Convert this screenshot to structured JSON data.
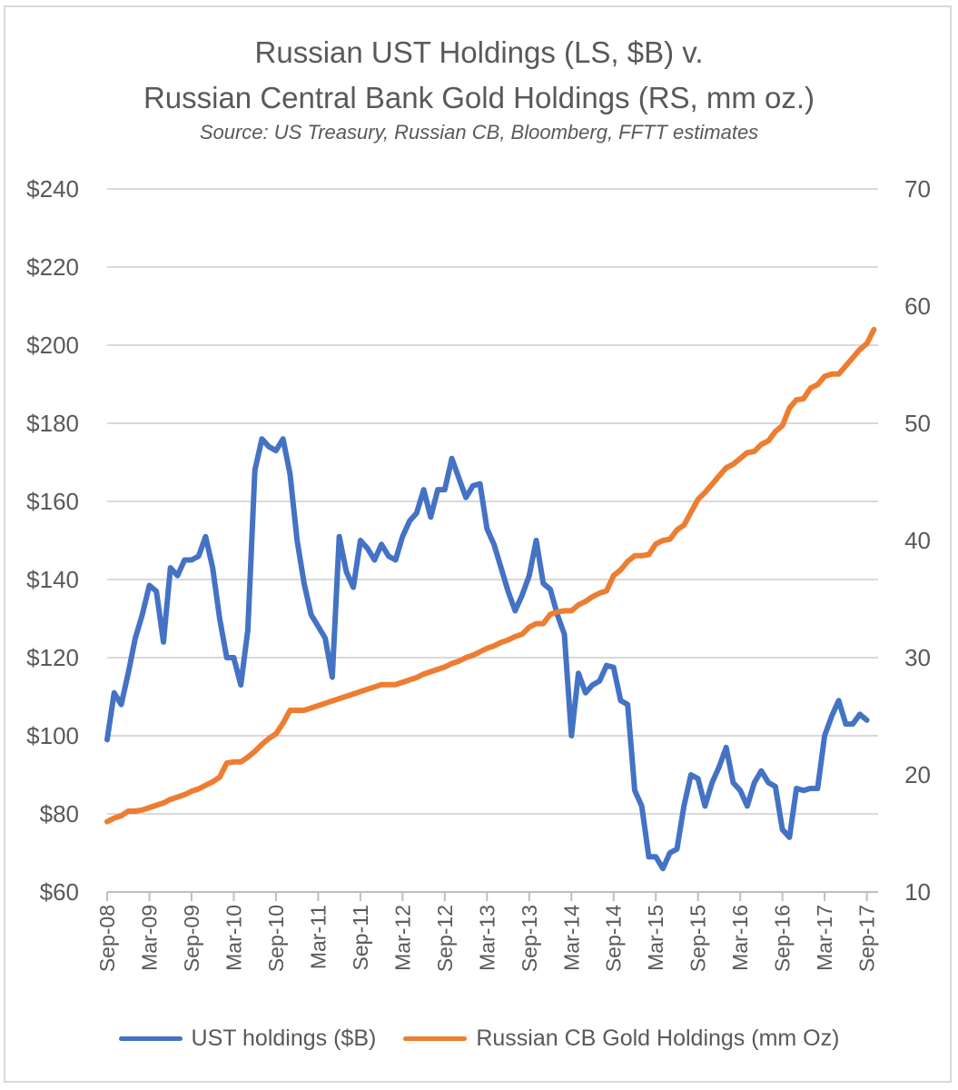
{
  "chart_data": {
    "type": "line",
    "title_line1": "Russian UST Holdings (LS, $B) v.",
    "title_line2": "Russian Central Bank Gold Holdings (RS, mm oz.)",
    "subtitle": "Source:  US Treasury, Russian CB, Bloomberg, FFTT estimates",
    "left_axis": {
      "min": 60,
      "max": 240,
      "step": 20,
      "ticks": [
        "$60",
        "$80",
        "$100",
        "$120",
        "$140",
        "$160",
        "$180",
        "$200",
        "$220",
        "$240"
      ]
    },
    "right_axis": {
      "min": 10,
      "max": 70,
      "step": 10,
      "ticks": [
        "10",
        "20",
        "30",
        "40",
        "50",
        "60",
        "70"
      ]
    },
    "x_tick_labels": [
      "Sep-08",
      "Mar-09",
      "Sep-09",
      "Mar-10",
      "Sep-10",
      "Mar-11",
      "Sep-11",
      "Mar-12",
      "Sep-12",
      "Mar-13",
      "Sep-13",
      "Mar-14",
      "Sep-14",
      "Mar-15",
      "Sep-15",
      "Mar-16",
      "Sep-16",
      "Mar-17",
      "Sep-17"
    ],
    "grid": true,
    "legend_position": "bottom",
    "series": [
      {
        "name": "UST holdings ($B)",
        "axis": "left",
        "color": "#4472C4",
        "points": [
          [
            "2008-09",
            99
          ],
          [
            "2008-10",
            111
          ],
          [
            "2008-11",
            108
          ],
          [
            "2008-12",
            116
          ],
          [
            "2009-01",
            125
          ],
          [
            "2009-02",
            131
          ],
          [
            "2009-03",
            138.5
          ],
          [
            "2009-04",
            137
          ],
          [
            "2009-05",
            124
          ],
          [
            "2009-06",
            143
          ],
          [
            "2009-07",
            141
          ],
          [
            "2009-08",
            145
          ],
          [
            "2009-09",
            145
          ],
          [
            "2009-10",
            146
          ],
          [
            "2009-11",
            151
          ],
          [
            "2009-12",
            143
          ],
          [
            "2010-01",
            130
          ],
          [
            "2010-02",
            120
          ],
          [
            "2010-03",
            120
          ],
          [
            "2010-04",
            113
          ],
          [
            "2010-05",
            127
          ],
          [
            "2010-06",
            168
          ],
          [
            "2010-07",
            176
          ],
          [
            "2010-08",
            174
          ],
          [
            "2010-09",
            173
          ],
          [
            "2010-10",
            176
          ],
          [
            "2010-11",
            167
          ],
          [
            "2010-12",
            150
          ],
          [
            "2011-01",
            139
          ],
          [
            "2011-02",
            131
          ],
          [
            "2011-03",
            128
          ],
          [
            "2011-04",
            125
          ],
          [
            "2011-05",
            115
          ],
          [
            "2011-06",
            151
          ],
          [
            "2011-07",
            142
          ],
          [
            "2011-08",
            138
          ],
          [
            "2011-09",
            150
          ],
          [
            "2011-10",
            148
          ],
          [
            "2011-11",
            145
          ],
          [
            "2011-12",
            149
          ],
          [
            "2012-01",
            146
          ],
          [
            "2012-02",
            145
          ],
          [
            "2012-03",
            151
          ],
          [
            "2012-04",
            155
          ],
          [
            "2012-05",
            157
          ],
          [
            "2012-06",
            163
          ],
          [
            "2012-07",
            156
          ],
          [
            "2012-08",
            163
          ],
          [
            "2012-09",
            163
          ],
          [
            "2012-10",
            171
          ],
          [
            "2012-11",
            166
          ],
          [
            "2012-12",
            161
          ],
          [
            "2013-01",
            164
          ],
          [
            "2013-02",
            164.5
          ],
          [
            "2013-03",
            153
          ],
          [
            "2013-04",
            149
          ],
          [
            "2013-05",
            143
          ],
          [
            "2013-06",
            137
          ],
          [
            "2013-07",
            132
          ],
          [
            "2013-08",
            136
          ],
          [
            "2013-09",
            141
          ],
          [
            "2013-10",
            150
          ],
          [
            "2013-11",
            139
          ],
          [
            "2013-12",
            137.5
          ],
          [
            "2014-01",
            131
          ],
          [
            "2014-02",
            126
          ],
          [
            "2014-03",
            100
          ],
          [
            "2014-04",
            116
          ],
          [
            "2014-05",
            111
          ],
          [
            "2014-06",
            113
          ],
          [
            "2014-07",
            114
          ],
          [
            "2014-08",
            118
          ],
          [
            "2014-09",
            117.5
          ],
          [
            "2014-10",
            109
          ],
          [
            "2014-11",
            108
          ],
          [
            "2014-12",
            86
          ],
          [
            "2015-01",
            82
          ],
          [
            "2015-02",
            69
          ],
          [
            "2015-03",
            69
          ],
          [
            "2015-04",
            66
          ],
          [
            "2015-05",
            70
          ],
          [
            "2015-06",
            71
          ],
          [
            "2015-07",
            82
          ],
          [
            "2015-08",
            90
          ],
          [
            "2015-09",
            89
          ],
          [
            "2015-10",
            82
          ],
          [
            "2015-11",
            88
          ],
          [
            "2015-12",
            92
          ],
          [
            "2016-01",
            97
          ],
          [
            "2016-02",
            88
          ],
          [
            "2016-03",
            86
          ],
          [
            "2016-04",
            82
          ],
          [
            "2016-05",
            88
          ],
          [
            "2016-06",
            91
          ],
          [
            "2016-07",
            88
          ],
          [
            "2016-08",
            87
          ],
          [
            "2016-09",
            76
          ],
          [
            "2016-10",
            74
          ],
          [
            "2016-11",
            86.5
          ],
          [
            "2016-12",
            86
          ],
          [
            "2017-01",
            86.5
          ],
          [
            "2017-02",
            86.5
          ],
          [
            "2017-03",
            100
          ],
          [
            "2017-04",
            105
          ],
          [
            "2017-05",
            109
          ],
          [
            "2017-06",
            103
          ],
          [
            "2017-07",
            103
          ],
          [
            "2017-08",
            105.5
          ],
          [
            "2017-09",
            104
          ]
        ]
      },
      {
        "name": "Russian CB Gold Holdings (mm Oz)",
        "axis": "right",
        "color": "#ED7D31",
        "points": [
          [
            "2008-09",
            16
          ],
          [
            "2008-10",
            16.3
          ],
          [
            "2008-11",
            16.5
          ],
          [
            "2008-12",
            16.9
          ],
          [
            "2009-01",
            16.9
          ],
          [
            "2009-02",
            17.0
          ],
          [
            "2009-03",
            17.2
          ],
          [
            "2009-04",
            17.4
          ],
          [
            "2009-05",
            17.6
          ],
          [
            "2009-06",
            17.9
          ],
          [
            "2009-07",
            18.1
          ],
          [
            "2009-08",
            18.3
          ],
          [
            "2009-09",
            18.6
          ],
          [
            "2009-10",
            18.8
          ],
          [
            "2009-11",
            19.1
          ],
          [
            "2009-12",
            19.4
          ],
          [
            "2010-01",
            19.8
          ],
          [
            "2010-02",
            21.0
          ],
          [
            "2010-03",
            21.1
          ],
          [
            "2010-04",
            21.1
          ],
          [
            "2010-05",
            21.5
          ],
          [
            "2010-06",
            22.0
          ],
          [
            "2010-07",
            22.6
          ],
          [
            "2010-08",
            23.1
          ],
          [
            "2010-09",
            23.5
          ],
          [
            "2010-10",
            24.4
          ],
          [
            "2010-11",
            25.5
          ],
          [
            "2010-12",
            25.5
          ],
          [
            "2011-01",
            25.5
          ],
          [
            "2011-02",
            25.7
          ],
          [
            "2011-03",
            25.9
          ],
          [
            "2011-04",
            26.1
          ],
          [
            "2011-05",
            26.3
          ],
          [
            "2011-06",
            26.5
          ],
          [
            "2011-07",
            26.7
          ],
          [
            "2011-08",
            26.9
          ],
          [
            "2011-09",
            27.1
          ],
          [
            "2011-10",
            27.3
          ],
          [
            "2011-11",
            27.5
          ],
          [
            "2011-12",
            27.7
          ],
          [
            "2012-01",
            27.7
          ],
          [
            "2012-02",
            27.7
          ],
          [
            "2012-03",
            27.9
          ],
          [
            "2012-04",
            28.1
          ],
          [
            "2012-05",
            28.3
          ],
          [
            "2012-06",
            28.6
          ],
          [
            "2012-07",
            28.8
          ],
          [
            "2012-08",
            29.0
          ],
          [
            "2012-09",
            29.2
          ],
          [
            "2012-10",
            29.5
          ],
          [
            "2012-11",
            29.7
          ],
          [
            "2012-12",
            30.0
          ],
          [
            "2013-01",
            30.2
          ],
          [
            "2013-02",
            30.5
          ],
          [
            "2013-03",
            30.8
          ],
          [
            "2013-04",
            31.0
          ],
          [
            "2013-05",
            31.3
          ],
          [
            "2013-06",
            31.5
          ],
          [
            "2013-07",
            31.8
          ],
          [
            "2013-08",
            32.0
          ],
          [
            "2013-09",
            32.6
          ],
          [
            "2013-10",
            32.9
          ],
          [
            "2013-11",
            32.9
          ],
          [
            "2013-12",
            33.7
          ],
          [
            "2014-01",
            33.9
          ],
          [
            "2014-02",
            34.0
          ],
          [
            "2014-03",
            34.0
          ],
          [
            "2014-04",
            34.5
          ],
          [
            "2014-05",
            34.8
          ],
          [
            "2014-06",
            35.2
          ],
          [
            "2014-07",
            35.5
          ],
          [
            "2014-08",
            35.7
          ],
          [
            "2014-09",
            37.0
          ],
          [
            "2014-10",
            37.5
          ],
          [
            "2014-11",
            38.2
          ],
          [
            "2014-12",
            38.7
          ],
          [
            "2015-01",
            38.7
          ],
          [
            "2015-02",
            38.8
          ],
          [
            "2015-03",
            39.7
          ],
          [
            "2015-04",
            40.0
          ],
          [
            "2015-05",
            40.1
          ],
          [
            "2015-06",
            40.9
          ],
          [
            "2015-07",
            41.3
          ],
          [
            "2015-08",
            42.4
          ],
          [
            "2015-09",
            43.5
          ],
          [
            "2015-10",
            44.1
          ],
          [
            "2015-11",
            44.8
          ],
          [
            "2015-12",
            45.5
          ],
          [
            "2016-01",
            46.2
          ],
          [
            "2016-02",
            46.5
          ],
          [
            "2016-03",
            47.0
          ],
          [
            "2016-04",
            47.5
          ],
          [
            "2016-05",
            47.6
          ],
          [
            "2016-06",
            48.2
          ],
          [
            "2016-07",
            48.5
          ],
          [
            "2016-08",
            49.3
          ],
          [
            "2016-09",
            49.8
          ],
          [
            "2016-10",
            51.3
          ],
          [
            "2016-11",
            52.0
          ],
          [
            "2016-12",
            52.1
          ],
          [
            "2017-01",
            53.0
          ],
          [
            "2017-02",
            53.3
          ],
          [
            "2017-03",
            54.0
          ],
          [
            "2017-04",
            54.2
          ],
          [
            "2017-05",
            54.2
          ],
          [
            "2017-06",
            54.9
          ],
          [
            "2017-07",
            55.6
          ],
          [
            "2017-08",
            56.3
          ],
          [
            "2017-09",
            56.8
          ],
          [
            "2017-10",
            58.0
          ]
        ]
      }
    ]
  }
}
